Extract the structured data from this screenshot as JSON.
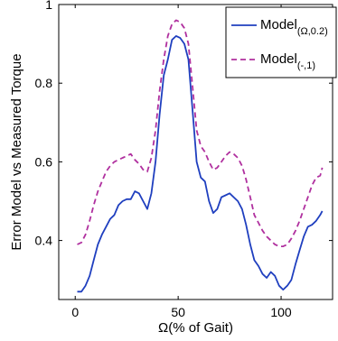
{
  "chart_data": {
    "type": "line",
    "title": "",
    "xlabel": "Ω(% of Gait)",
    "ylabel": "Error Model vs Measured Torque",
    "xlim": [
      -8,
      125
    ],
    "ylim": [
      0.25,
      1.0
    ],
    "xticks": [
      0,
      50,
      100
    ],
    "xtick_labels": [
      "0",
      "50",
      "100"
    ],
    "yticks": [
      0.4,
      0.6,
      0.8,
      1.0
    ],
    "ytick_labels": [
      "0.4",
      "0.6",
      "0.8",
      "1"
    ],
    "grid": false,
    "legend_position": "top-right",
    "series": [
      {
        "name": "Model",
        "name_sub": "(Ω,0.2)",
        "color": "#1f3fbf",
        "dash": "solid",
        "x": [
          1,
          3,
          5,
          7,
          9,
          11,
          13,
          15,
          17,
          19,
          21,
          23,
          25,
          27,
          29,
          31,
          33,
          35,
          37,
          39,
          41,
          43,
          45,
          47,
          49,
          51,
          53,
          55,
          57,
          59,
          61,
          63,
          65,
          67,
          69,
          71,
          73,
          75,
          77,
          79,
          81,
          83,
          85,
          87,
          89,
          91,
          93,
          95,
          97,
          99,
          101,
          103,
          105,
          107,
          109,
          111,
          113,
          115,
          117,
          119,
          120
        ],
        "y": [
          0.27,
          0.27,
          0.285,
          0.31,
          0.35,
          0.39,
          0.415,
          0.435,
          0.455,
          0.465,
          0.49,
          0.5,
          0.505,
          0.505,
          0.525,
          0.52,
          0.5,
          0.48,
          0.52,
          0.6,
          0.72,
          0.82,
          0.86,
          0.91,
          0.92,
          0.915,
          0.9,
          0.86,
          0.73,
          0.6,
          0.56,
          0.55,
          0.5,
          0.47,
          0.48,
          0.51,
          0.515,
          0.52,
          0.51,
          0.5,
          0.48,
          0.44,
          0.39,
          0.35,
          0.335,
          0.315,
          0.305,
          0.32,
          0.31,
          0.285,
          0.275,
          0.285,
          0.3,
          0.34,
          0.375,
          0.41,
          0.435,
          0.44,
          0.45,
          0.465,
          0.475
        ]
      },
      {
        "name": "Model",
        "name_sub": "(-,1)",
        "color": "#b0309f",
        "dash": "dashed",
        "x": [
          1,
          3,
          5,
          7,
          9,
          11,
          13,
          15,
          17,
          19,
          21,
          23,
          25,
          27,
          29,
          31,
          33,
          35,
          37,
          39,
          41,
          43,
          45,
          47,
          49,
          51,
          53,
          55,
          57,
          59,
          61,
          63,
          65,
          67,
          69,
          71,
          73,
          75,
          77,
          79,
          81,
          83,
          85,
          87,
          89,
          91,
          93,
          95,
          97,
          99,
          101,
          103,
          105,
          107,
          109,
          111,
          113,
          115,
          117,
          119,
          120
        ],
        "y": [
          0.39,
          0.395,
          0.415,
          0.45,
          0.49,
          0.525,
          0.55,
          0.575,
          0.59,
          0.6,
          0.605,
          0.61,
          0.615,
          0.62,
          0.605,
          0.595,
          0.58,
          0.575,
          0.61,
          0.68,
          0.78,
          0.86,
          0.92,
          0.95,
          0.96,
          0.955,
          0.94,
          0.9,
          0.79,
          0.68,
          0.64,
          0.625,
          0.6,
          0.58,
          0.585,
          0.6,
          0.615,
          0.625,
          0.62,
          0.61,
          0.59,
          0.555,
          0.51,
          0.465,
          0.445,
          0.425,
          0.41,
          0.4,
          0.39,
          0.385,
          0.385,
          0.39,
          0.405,
          0.425,
          0.45,
          0.48,
          0.51,
          0.54,
          0.56,
          0.565,
          0.585
        ]
      }
    ]
  }
}
